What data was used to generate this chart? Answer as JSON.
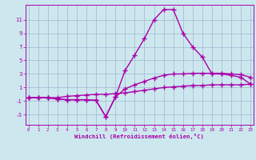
{
  "background_color": "#cce8ee",
  "line_color": "#aa00aa",
  "grid_color": "#99aacc",
  "x_label": "Windchill (Refroidissement éolien,°C)",
  "x_ticks": [
    0,
    1,
    2,
    3,
    4,
    5,
    6,
    7,
    8,
    9,
    10,
    11,
    12,
    13,
    14,
    15,
    16,
    17,
    18,
    19,
    20,
    21,
    22,
    23
  ],
  "y_ticks": [
    -3,
    -1,
    1,
    3,
    5,
    7,
    9,
    11
  ],
  "ylim": [
    -4.5,
    13.2
  ],
  "xlim": [
    -0.3,
    23.3
  ],
  "curve_bottom_x": [
    0,
    1,
    2,
    3,
    4,
    5,
    6,
    7,
    8,
    9,
    10,
    11,
    12,
    13,
    14,
    15,
    16,
    17,
    18,
    19,
    20,
    21,
    22,
    23
  ],
  "curve_bottom_y": [
    -0.5,
    -0.5,
    -0.5,
    -0.5,
    -0.3,
    -0.2,
    -0.1,
    0.0,
    0.0,
    0.1,
    0.2,
    0.4,
    0.6,
    0.8,
    1.0,
    1.1,
    1.2,
    1.3,
    1.3,
    1.4,
    1.4,
    1.4,
    1.4,
    1.5
  ],
  "curve_mid_x": [
    0,
    1,
    2,
    3,
    4,
    5,
    6,
    7,
    8,
    9,
    10,
    11,
    12,
    13,
    14,
    15,
    16,
    17,
    18,
    19,
    20,
    21,
    22,
    23
  ],
  "curve_mid_y": [
    -0.5,
    -0.5,
    -0.5,
    -0.7,
    -0.8,
    -0.8,
    -0.8,
    -0.9,
    -3.3,
    -0.4,
    0.8,
    1.4,
    1.9,
    2.4,
    2.8,
    3.0,
    3.0,
    3.1,
    3.1,
    3.1,
    3.1,
    3.0,
    2.9,
    2.5
  ],
  "curve_top_x": [
    0,
    1,
    2,
    3,
    4,
    5,
    6,
    7,
    8,
    9,
    10,
    11,
    12,
    13,
    14,
    15,
    16,
    17,
    18,
    19,
    20,
    21,
    22,
    23
  ],
  "curve_top_y": [
    -0.5,
    -0.5,
    -0.5,
    -0.7,
    -0.8,
    -0.8,
    -0.8,
    -0.9,
    -3.3,
    -0.4,
    3.5,
    5.8,
    8.2,
    11.0,
    12.5,
    12.5,
    9.0,
    7.0,
    5.5,
    3.0,
    3.0,
    2.8,
    2.5,
    1.5
  ],
  "marker": "+",
  "markersize": 4,
  "linewidth": 1.0
}
